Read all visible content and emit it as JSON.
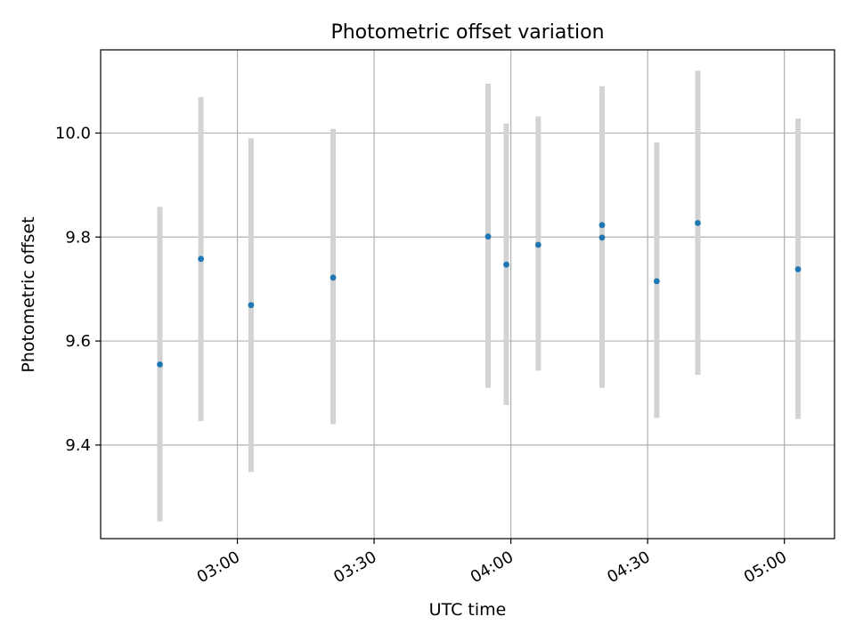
{
  "chart_data": {
    "type": "scatter",
    "title": "Photometric offset variation",
    "xlabel": "UTC time",
    "ylabel": "Photometric offset",
    "x_tick_labels": [
      "03:00",
      "03:30",
      "04:00",
      "04:30",
      "05:00"
    ],
    "x_tick_values": [
      "03:00",
      "03:30",
      "04:00",
      "04:30",
      "05:00"
    ],
    "y_tick_labels": [
      "9.4",
      "9.6",
      "9.8",
      "10.0"
    ],
    "y_tick_values": [
      9.4,
      9.6,
      9.8,
      10.0
    ],
    "xlim": [
      "02:30",
      "05:11"
    ],
    "ylim": [
      9.22,
      10.16
    ],
    "grid": true,
    "colors": {
      "points": "#1f77b4",
      "error_bars": "#d3d3d3",
      "grid": "#b0b0b0"
    },
    "points": [
      {
        "x": "02:43",
        "y": 9.555,
        "err_low": 9.253,
        "err_high": 9.858
      },
      {
        "x": "02:52",
        "y": 9.758,
        "err_low": 9.446,
        "err_high": 10.069
      },
      {
        "x": "03:03",
        "y": 9.669,
        "err_low": 9.348,
        "err_high": 9.99
      },
      {
        "x": "03:21",
        "y": 9.722,
        "err_low": 9.44,
        "err_high": 10.008
      },
      {
        "x": "03:55",
        "y": 9.801,
        "err_low": 9.51,
        "err_high": 10.095
      },
      {
        "x": "03:59",
        "y": 9.747,
        "err_low": 9.477,
        "err_high": 10.018
      },
      {
        "x": "04:06",
        "y": 9.785,
        "err_low": 9.543,
        "err_high": 10.032
      },
      {
        "x": "04:20",
        "y": 9.823,
        "err_low": 9.57,
        "err_high": 10.078
      },
      {
        "x": "04:20",
        "y": 9.799,
        "err_low": 9.51,
        "err_high": 10.09
      },
      {
        "x": "04:32",
        "y": 9.715,
        "err_low": 9.452,
        "err_high": 9.982
      },
      {
        "x": "04:41",
        "y": 9.827,
        "err_low": 9.535,
        "err_high": 10.12
      },
      {
        "x": "05:03",
        "y": 9.738,
        "err_low": 9.45,
        "err_high": 10.028
      }
    ]
  }
}
